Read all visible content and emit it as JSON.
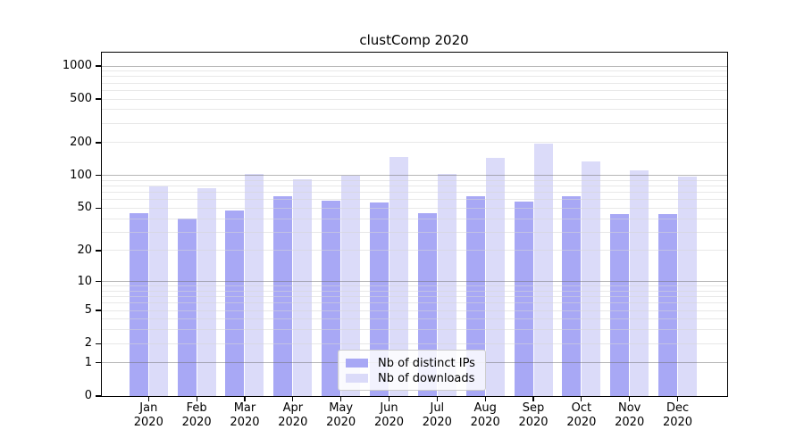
{
  "chart_data": {
    "type": "bar",
    "title": "clustComp 2020",
    "categories": [
      "Jan",
      "Feb",
      "Mar",
      "Apr",
      "May",
      "Jun",
      "Jul",
      "Aug",
      "Sep",
      "Oct",
      "Nov",
      "Dec"
    ],
    "category_year": "2020",
    "series": [
      {
        "name": "Nb of distinct IPs",
        "color": "#a8a8f5",
        "values": [
          45,
          40,
          48,
          64,
          59,
          57,
          45,
          64,
          58,
          64,
          44,
          44
        ]
      },
      {
        "name": "Nb of downloads",
        "color": "#dbdbf9",
        "values": [
          79,
          77,
          103,
          92,
          100,
          149,
          104,
          145,
          196,
          134,
          112,
          98
        ]
      }
    ],
    "y_axis": {
      "scale": "log10(1+v)",
      "tick_values": [
        0,
        1,
        2,
        5,
        10,
        20,
        50,
        100,
        200,
        500,
        1000
      ],
      "max": 1000
    },
    "x_axis": {
      "tick_label_line2": "2020"
    },
    "grid": {
      "major_values": [
        1,
        10,
        100,
        1000
      ],
      "minor_values": [
        2,
        3,
        4,
        5,
        6,
        7,
        8,
        9,
        20,
        30,
        40,
        50,
        60,
        70,
        80,
        90,
        200,
        300,
        400,
        500,
        600,
        700,
        800,
        900
      ],
      "major_color": "rgba(110,110,110,0.5)",
      "minor_color": "rgba(214,214,214,0.55)"
    },
    "legend": {
      "entries": [
        "Nb of distinct IPs",
        "Nb of downloads"
      ],
      "background": "rgba(255,255,255,0.85)",
      "border_color": "#cccccc"
    },
    "colors": {
      "axis": "#000000",
      "text": "#000000",
      "background": "#ffffff"
    }
  }
}
